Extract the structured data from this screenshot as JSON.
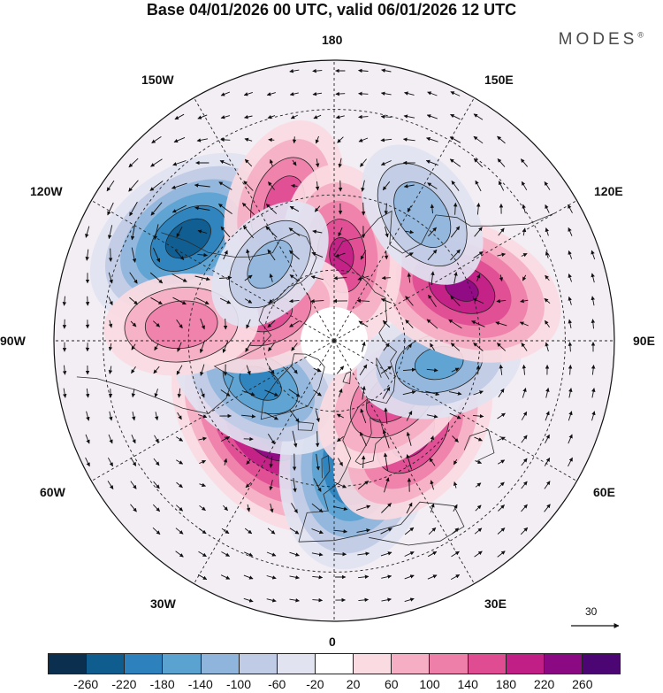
{
  "header": {
    "title": "Base 04/01/2026 00 UTC, valid 06/01/2026 12 UTC",
    "brand": "MODES",
    "brand_mark": "®"
  },
  "map": {
    "projection": "north-polar-stereographic",
    "longitude_labels": [
      "180",
      "150E",
      "120E",
      "90E",
      "60E",
      "30E",
      "0",
      "30W",
      "60W",
      "90W",
      "120W",
      "150W"
    ],
    "reference_vector": {
      "value": "30"
    },
    "anomalies": [
      {
        "name": "ridge-north-atlantic",
        "lon": -38,
        "lat": 60,
        "value": 280
      },
      {
        "name": "trough-europe-west",
        "lon": 12,
        "lat": 58,
        "value": -270
      },
      {
        "name": "trough-greenland",
        "lon": -60,
        "lat": 66,
        "value": -190
      },
      {
        "name": "ridge-east-europe",
        "lon": 40,
        "lat": 56,
        "value": 200
      },
      {
        "name": "ridge-russia",
        "lon": 48,
        "lat": 67,
        "value": 170
      },
      {
        "name": "trough-west-siberia",
        "lon": 78,
        "lat": 60,
        "value": -150
      },
      {
        "name": "ridge-east-siberia",
        "lon": 112,
        "lat": 52,
        "value": 220
      },
      {
        "name": "trough-north-pacific",
        "lon": -125,
        "lat": 42,
        "value": -240
      },
      {
        "name": "ridge-pacific",
        "lon": -160,
        "lat": 50,
        "value": 160
      },
      {
        "name": "ridge-bering",
        "lon": 175,
        "lat": 66,
        "value": 180
      },
      {
        "name": "ridge-north-canada",
        "lon": -112,
        "lat": 70,
        "value": 150
      },
      {
        "name": "ridge-central-canada",
        "lon": -96,
        "lat": 48,
        "value": 130
      },
      {
        "name": "trough-east-asia",
        "lon": 145,
        "lat": 48,
        "value": -130
      },
      {
        "name": "trough-alaska",
        "lon": -140,
        "lat": 62,
        "value": -110
      }
    ]
  },
  "colorbar": {
    "colors": [
      "#0a2f4f",
      "#0f5c8e",
      "#2d82bd",
      "#5aa2d0",
      "#8fb5dc",
      "#c0cbe5",
      "#e1e3f1",
      "#ffffff",
      "#fbdbe2",
      "#f5aec3",
      "#ee7fa8",
      "#e04c92",
      "#c11e86",
      "#8b0a83",
      "#4b0674"
    ],
    "ticks": [
      "-260",
      "-220",
      "-180",
      "-140",
      "-100",
      "-60",
      "-20",
      "20",
      "60",
      "100",
      "140",
      "180",
      "220",
      "260"
    ]
  }
}
